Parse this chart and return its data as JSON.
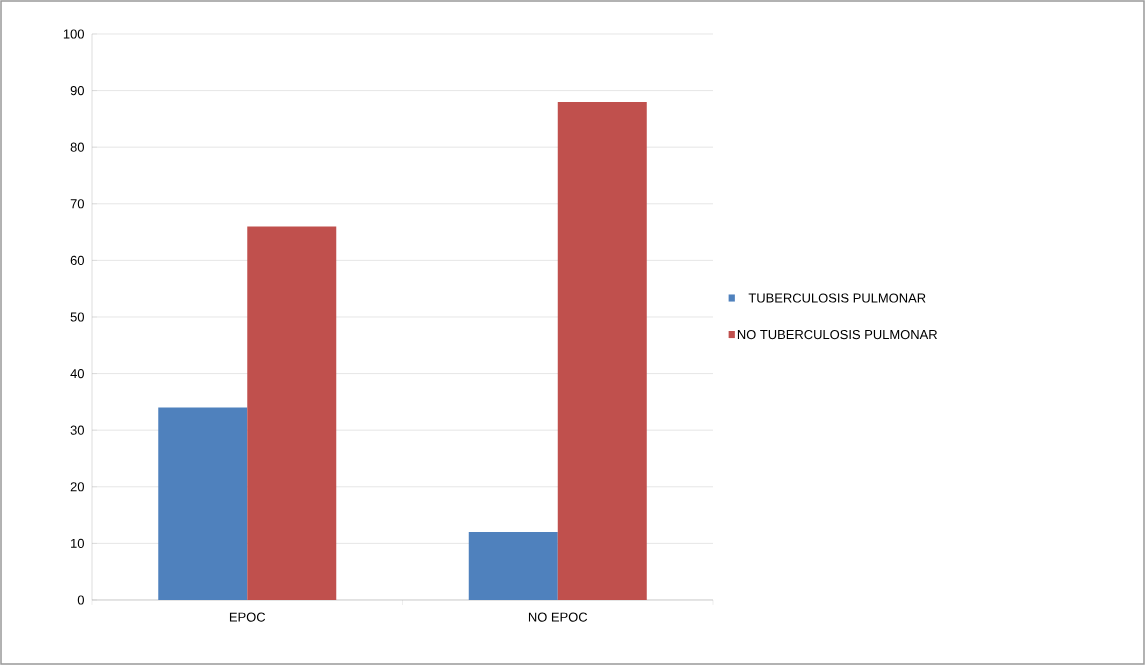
{
  "chart_data": {
    "type": "bar",
    "categories": [
      "EPOC",
      "NO EPOC"
    ],
    "series": [
      {
        "name": "TUBERCULOSIS PULMONAR",
        "color": "#4f81bd",
        "values": [
          34,
          12
        ]
      },
      {
        "name": "NO TUBERCULOSIS PULMONAR",
        "color": "#c0504d",
        "values": [
          66,
          88
        ]
      }
    ],
    "ylim": [
      0,
      100
    ],
    "yticks": [
      0,
      10,
      20,
      30,
      40,
      50,
      60,
      70,
      80,
      90,
      100
    ],
    "grid": "y",
    "legend": "right"
  }
}
